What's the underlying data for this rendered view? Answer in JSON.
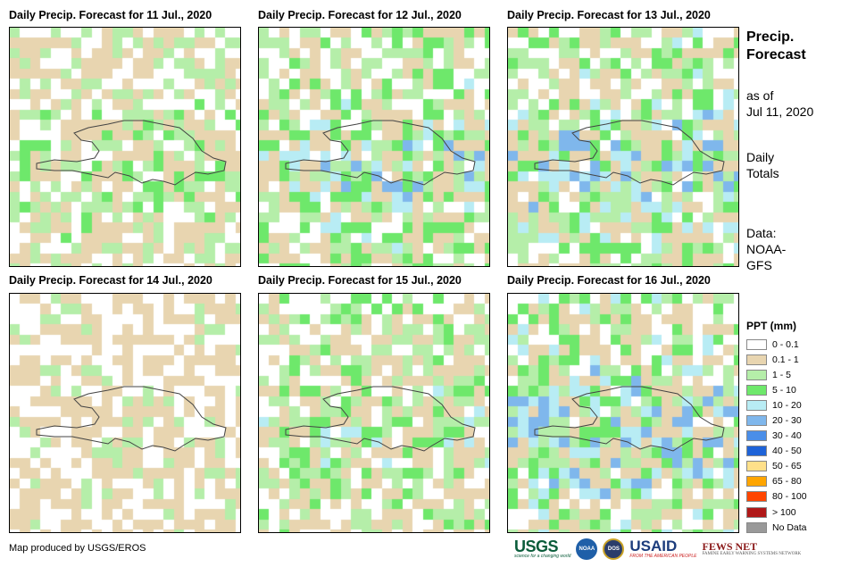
{
  "panels": [
    {
      "title": "Daily Precip. Forecast for 11 Jul., 2020",
      "seed": 11
    },
    {
      "title": "Daily Precip. Forecast for 12 Jul., 2020",
      "seed": 12
    },
    {
      "title": "Daily Precip. Forecast for 13 Jul., 2020",
      "seed": 13
    },
    {
      "title": "Daily Precip. Forecast for 14 Jul., 2020",
      "seed": 14
    },
    {
      "title": "Daily Precip. Forecast for 15 Jul., 2020",
      "seed": 15
    },
    {
      "title": "Daily Precip. Forecast for 16 Jul., 2020",
      "seed": 16
    }
  ],
  "sidebar": {
    "title_line1": "Precip.",
    "title_line2": "Forecast",
    "asof_line1": "as of",
    "asof_line2": "Jul 11, 2020",
    "totals_line1": "Daily",
    "totals_line2": "Totals",
    "source_line1": "Data:",
    "source_line2": "NOAA-",
    "source_line3": "GFS"
  },
  "legend": {
    "title": "PPT (mm)",
    "items": [
      {
        "label": "0 - 0.1",
        "color": "#ffffff"
      },
      {
        "label": "0.1 - 1",
        "color": "#e8d5b0"
      },
      {
        "label": "1 - 5",
        "color": "#b5eea9"
      },
      {
        "label": "5 - 10",
        "color": "#6ee86b"
      },
      {
        "label": "10 - 20",
        "color": "#b8ecf4"
      },
      {
        "label": "20 - 30",
        "color": "#7fb7ec"
      },
      {
        "label": "30 - 40",
        "color": "#4a8ee8"
      },
      {
        "label": "40 - 50",
        "color": "#1e63d8"
      },
      {
        "label": "50 - 65",
        "color": "#ffe08a"
      },
      {
        "label": "65 - 80",
        "color": "#ffa500"
      },
      {
        "label": "80 - 100",
        "color": "#ff4500"
      },
      {
        "label": "> 100",
        "color": "#b01818"
      },
      {
        "label": "No Data",
        "color": "#999999"
      }
    ]
  },
  "footer": {
    "credit": "Map produced by USGS/EROS",
    "logo_usgs": "USGS",
    "logo_usgs_sub": "science for a changing world",
    "logo_noaa": "NOAA",
    "logo_dos": "DOS",
    "logo_usaid": "USAID",
    "logo_usaid_sub": "FROM THE AMERICAN PEOPLE",
    "logo_fews": "FEWS NET",
    "logo_fews_sub": "FAMINE EARLY WARNING SYSTEMS NETWORK"
  }
}
